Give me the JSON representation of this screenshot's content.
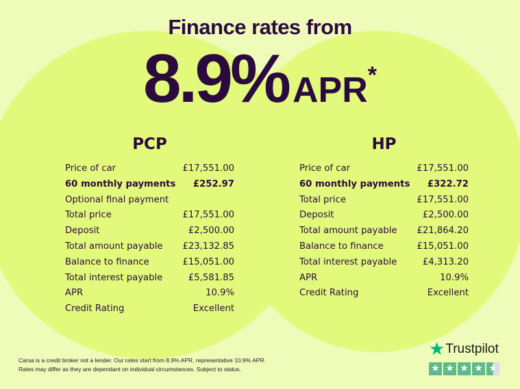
{
  "headline": "Finance rates from",
  "rate": "8.9%",
  "apr": "APR",
  "asterisk": "*",
  "pcp": {
    "title": "PCP",
    "rows": [
      {
        "label": "Price of car",
        "value": "£17,551.00"
      },
      {
        "label": "60 monthly payments",
        "value": "£252.97",
        "bold": true
      },
      {
        "label": "Optional final payment",
        "value": ""
      },
      {
        "label": "Total price",
        "value": "£17,551.00"
      },
      {
        "label": "Deposit",
        "value": "£2,500.00"
      },
      {
        "label": "Total amount payable",
        "value": "£23,132.85"
      },
      {
        "label": "Balance to finance",
        "value": "£15,051.00"
      },
      {
        "label": "Total interest payable",
        "value": "£5,581.85"
      },
      {
        "label": "APR",
        "value": "10.9%"
      },
      {
        "label": "Credit Rating",
        "value": "Excellent"
      }
    ]
  },
  "hp": {
    "title": "HP",
    "rows": [
      {
        "label": "Price of car",
        "value": "£17,551.00"
      },
      {
        "label": "60 monthly payments",
        "value": "£322.72",
        "bold": true
      },
      {
        "label": "Total price",
        "value": "£17,551.00"
      },
      {
        "label": "Deposit",
        "value": "£2,500.00"
      },
      {
        "label": "Total amount payable",
        "value": "£21,864.20"
      },
      {
        "label": "Balance to finance",
        "value": "£15,051.00"
      },
      {
        "label": "Total interest payable",
        "value": "£4,313.20"
      },
      {
        "label": "APR",
        "value": "10.9%"
      },
      {
        "label": "Credit Rating",
        "value": "Excellent"
      }
    ]
  },
  "disclaimer": [
    "Carsa is a credit broker not a lender. Our rates start from 8.9% APR, representative 10.9% APR.",
    "Rates may differ as they are dependant on individual circumstances. Subject to status."
  ],
  "trustpilot": {
    "name": "Trustpilot",
    "rating_stars": 4.5,
    "brand_color": "#00b67a"
  },
  "colors": {
    "text": "#2b0b3d",
    "background": "#eefbb9",
    "circle": "#e3f97c"
  }
}
